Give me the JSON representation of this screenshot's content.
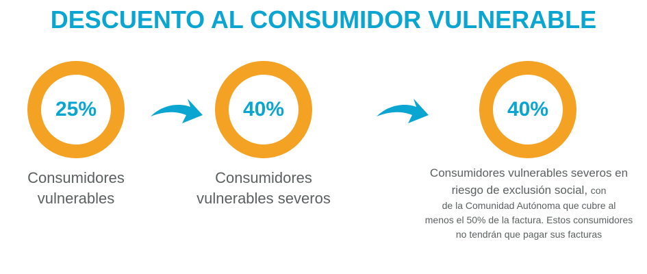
{
  "title": "DESCUENTO AL CONSUMIDOR VULNERABLE",
  "colors": {
    "accent": "#0aa5d0",
    "ring": "#f4a223",
    "text": "#5a5f60"
  },
  "steps": [
    {
      "percent": "25%",
      "label_lines": [
        "Consumidores",
        "vulnerables"
      ]
    },
    {
      "percent": "40%",
      "label_lines": [
        "Consumidores",
        "vulnerables severos"
      ]
    },
    {
      "percent": "40%",
      "label_lines": [
        "Consumidores vulnerables severos en",
        "riesgo de exclusión social,"
      ],
      "label_extra": "con",
      "detail_lines": [
        "de la Comunidad Autónoma que cubre al",
        "menos el 50% de la factura. Estos consumidores",
        "no tendrán que pagar sus facturas"
      ]
    }
  ],
  "icons": [
    "curved-arrow-right-icon",
    "curved-arrow-right-icon"
  ]
}
